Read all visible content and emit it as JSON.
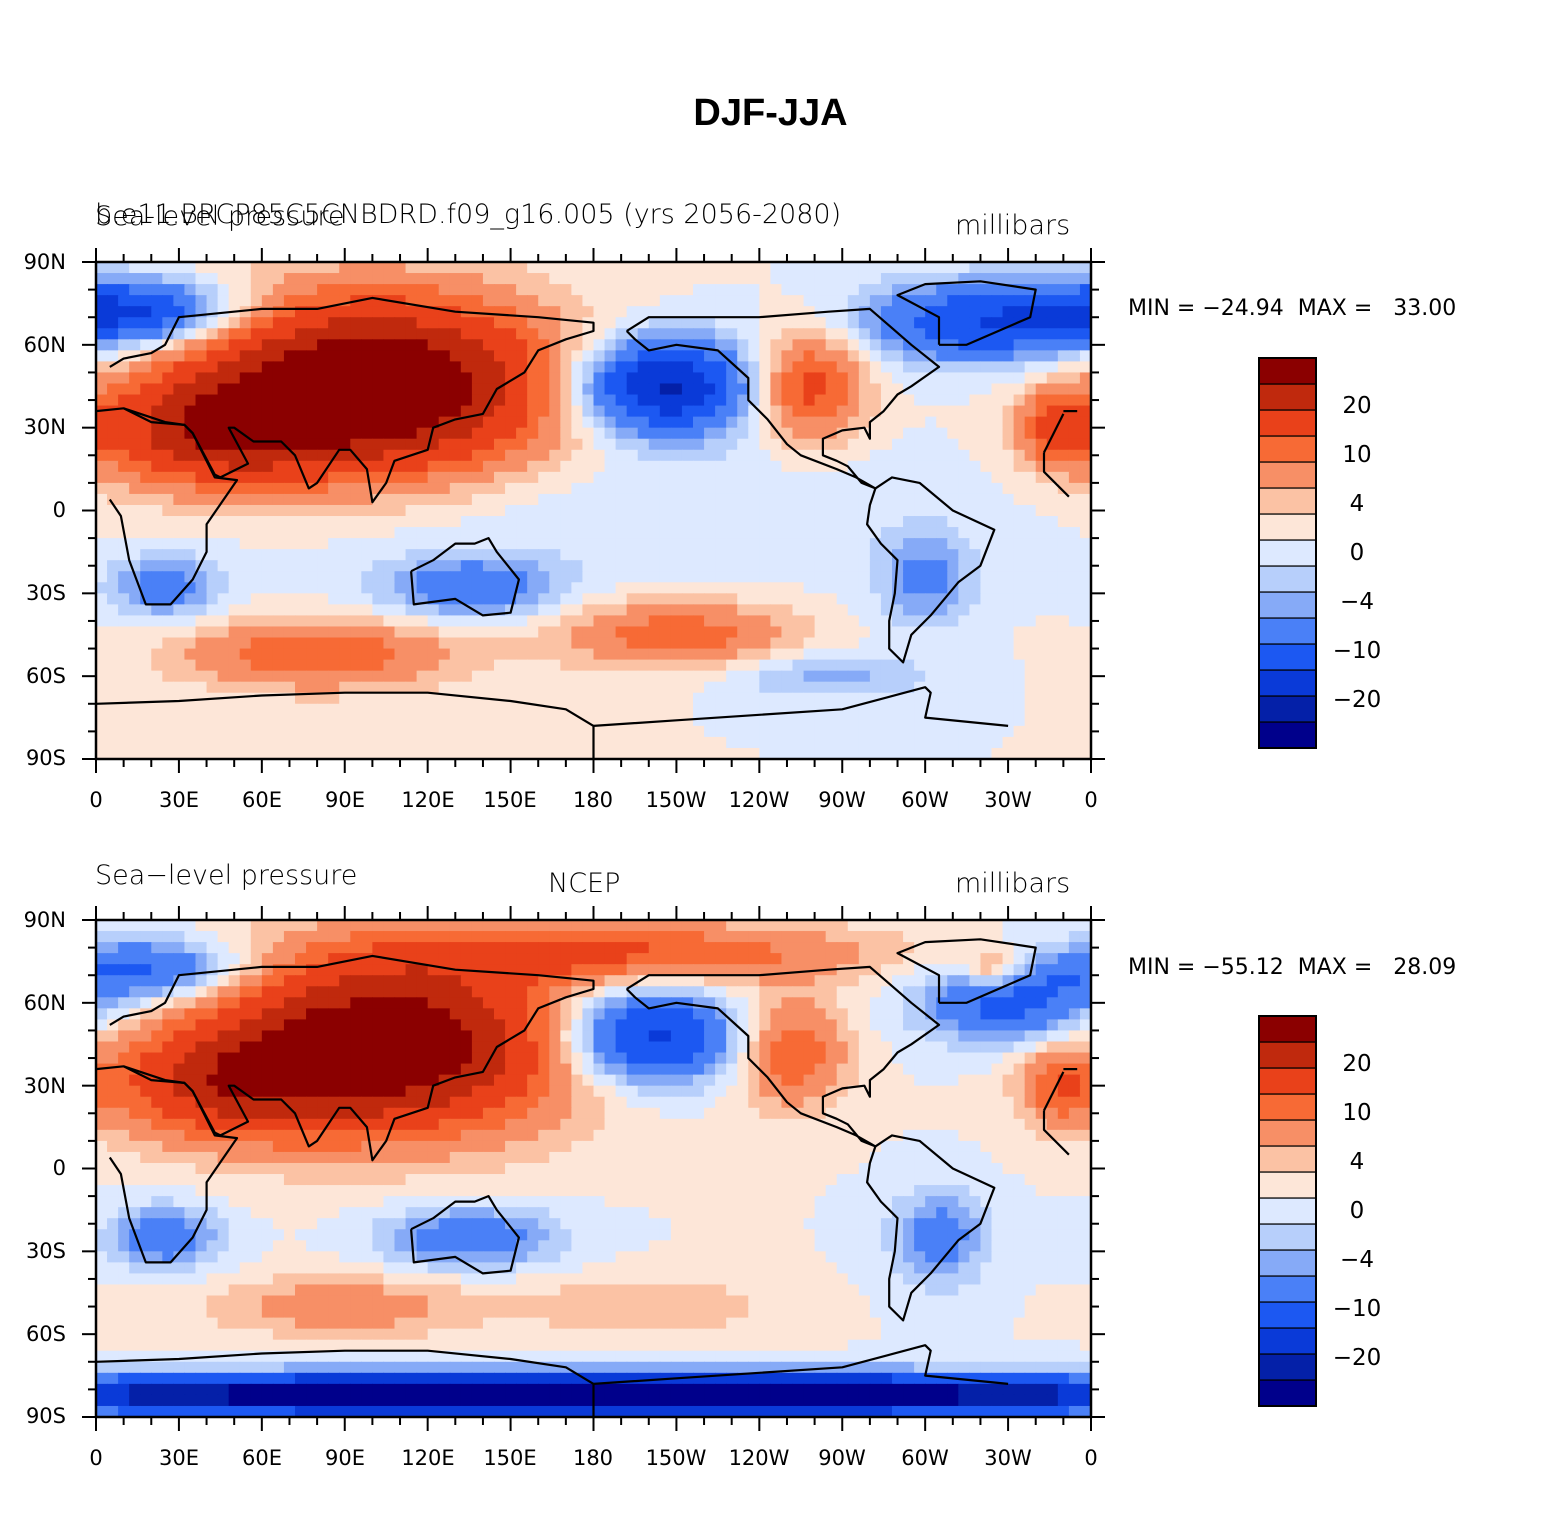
{
  "figure": {
    "title": "DJF-JJA"
  },
  "panels": [
    {
      "left_label": "Sea-level pressure",
      "center_label": "b.e11.BRCP85C5CNBDRD.f09_g16.005 (yrs 2056-2080)",
      "right_label": "millibars",
      "min_max_text": "MIN = −24.94  MAX =   33.00"
    },
    {
      "left_label": "Sea−level pressure",
      "center_label": "NCEP",
      "right_label": "millibars",
      "min_max_text": "MIN = −55.12  MAX =   28.09"
    }
  ],
  "colorbar": {
    "colors": [
      "#00008b",
      "#0420a8",
      "#0a3ad8",
      "#1c58f2",
      "#4a80f7",
      "#86aaf7",
      "#b7cffb",
      "#dde9ff",
      "#fde6d8",
      "#fbc2a4",
      "#f78f66",
      "#f76a35",
      "#e9411a",
      "#c0290d",
      "#8b0000"
    ],
    "labels": [
      {
        "text": "−20",
        "bin": 3
      },
      {
        "text": "−10",
        "bin": 5
      },
      {
        "text": "−4",
        "bin": 7
      },
      {
        "text": "0",
        "bin": 9
      },
      {
        "text": "4",
        "bin": 11
      },
      {
        "text": "10",
        "bin": 13
      },
      {
        "text": "20",
        "bin": 15
      }
    ]
  },
  "chart_data": [
    {
      "type": "heatmap",
      "title": "Sea-level pressure",
      "subtitle": "b.e11.BRCP85C5CNBDRD.f09_g16.005 (yrs 2056-2080)",
      "units": "millibars",
      "x_ticks": [
        "0",
        "30E",
        "60E",
        "90E",
        "120E",
        "150E",
        "180",
        "150W",
        "120W",
        "90W",
        "60W",
        "30W",
        "0"
      ],
      "y_ticks": [
        "90N",
        "60N",
        "30N",
        "0",
        "30S",
        "60S",
        "90S"
      ],
      "xlim": [
        0,
        360
      ],
      "ylim": [
        -90,
        90
      ],
      "min": -24.94,
      "max": 33.0,
      "levels": [
        -20,
        -10,
        -4,
        0,
        4,
        10,
        20
      ],
      "features": [
        {
          "lon": 100,
          "lat": 45,
          "value": 28,
          "sx": 45,
          "sy": 22
        },
        {
          "lon": 40,
          "lat": 28,
          "value": 14,
          "sx": 30,
          "sy": 14
        },
        {
          "lon": 205,
          "lat": 45,
          "value": -22,
          "sx": 22,
          "sy": 12
        },
        {
          "lon": 258,
          "lat": 45,
          "value": 12,
          "sx": 14,
          "sy": 14
        },
        {
          "lon": 348,
          "lat": 30,
          "value": 10,
          "sx": 10,
          "sy": 10
        },
        {
          "lon": 320,
          "lat": 68,
          "value": -14,
          "sx": 30,
          "sy": 10
        },
        {
          "lon": 15,
          "lat": 72,
          "value": -16,
          "sx": 25,
          "sy": 8
        },
        {
          "lon": 25,
          "lat": -28,
          "value": -8,
          "sx": 14,
          "sy": 8
        },
        {
          "lon": 135,
          "lat": -28,
          "value": -9,
          "sx": 22,
          "sy": 8
        },
        {
          "lon": 300,
          "lat": -25,
          "value": -7,
          "sx": 12,
          "sy": 12
        },
        {
          "lon": 80,
          "lat": -52,
          "value": 10,
          "sx": 35,
          "sy": 9
        },
        {
          "lon": 210,
          "lat": -45,
          "value": 9,
          "sx": 30,
          "sy": 9
        },
        {
          "lon": 265,
          "lat": -60,
          "value": -5,
          "sx": 25,
          "sy": 6
        },
        {
          "lon": 180,
          "lat": 0,
          "value": -2,
          "sx": 90,
          "sy": 18
        }
      ]
    },
    {
      "type": "heatmap",
      "title": "Sea−level pressure",
      "subtitle": "NCEP",
      "units": "millibars",
      "x_ticks": [
        "0",
        "30E",
        "60E",
        "90E",
        "120E",
        "150E",
        "180",
        "150W",
        "120W",
        "90W",
        "60W",
        "30W",
        "0"
      ],
      "y_ticks": [
        "90N",
        "60N",
        "30N",
        "0",
        "30S",
        "60S",
        "90S"
      ],
      "xlim": [
        0,
        360
      ],
      "ylim": [
        -90,
        90
      ],
      "min": -55.12,
      "max": 28.09,
      "levels": [
        -20,
        -10,
        -4,
        0,
        4,
        10,
        20
      ],
      "features": [
        {
          "lon": 105,
          "lat": 45,
          "value": 26,
          "sx": 45,
          "sy": 22
        },
        {
          "lon": 45,
          "lat": 30,
          "value": 12,
          "sx": 30,
          "sy": 14
        },
        {
          "lon": 195,
          "lat": 78,
          "value": 10,
          "sx": 60,
          "sy": 8
        },
        {
          "lon": 200,
          "lat": 48,
          "value": -18,
          "sx": 22,
          "sy": 12
        },
        {
          "lon": 252,
          "lat": 42,
          "value": 10,
          "sx": 14,
          "sy": 14
        },
        {
          "lon": 348,
          "lat": 30,
          "value": 8,
          "sx": 10,
          "sy": 10
        },
        {
          "lon": 325,
          "lat": 72,
          "value": 8,
          "sx": 8,
          "sy": 5
        },
        {
          "lon": 330,
          "lat": 60,
          "value": -12,
          "sx": 22,
          "sy": 10
        },
        {
          "lon": 20,
          "lat": 72,
          "value": -12,
          "sx": 25,
          "sy": 8
        },
        {
          "lon": 25,
          "lat": -25,
          "value": -9,
          "sx": 14,
          "sy": 8
        },
        {
          "lon": 135,
          "lat": -25,
          "value": -9,
          "sx": 22,
          "sy": 8
        },
        {
          "lon": 305,
          "lat": -25,
          "value": -8,
          "sx": 12,
          "sy": 12
        },
        {
          "lon": 90,
          "lat": -50,
          "value": 6,
          "sx": 35,
          "sy": 8
        },
        {
          "lon": 200,
          "lat": -50,
          "value": 4,
          "sx": 30,
          "sy": 8
        },
        {
          "lon": 180,
          "lat": -82,
          "value": -40,
          "sx": 150,
          "sy": 5
        }
      ]
    }
  ]
}
